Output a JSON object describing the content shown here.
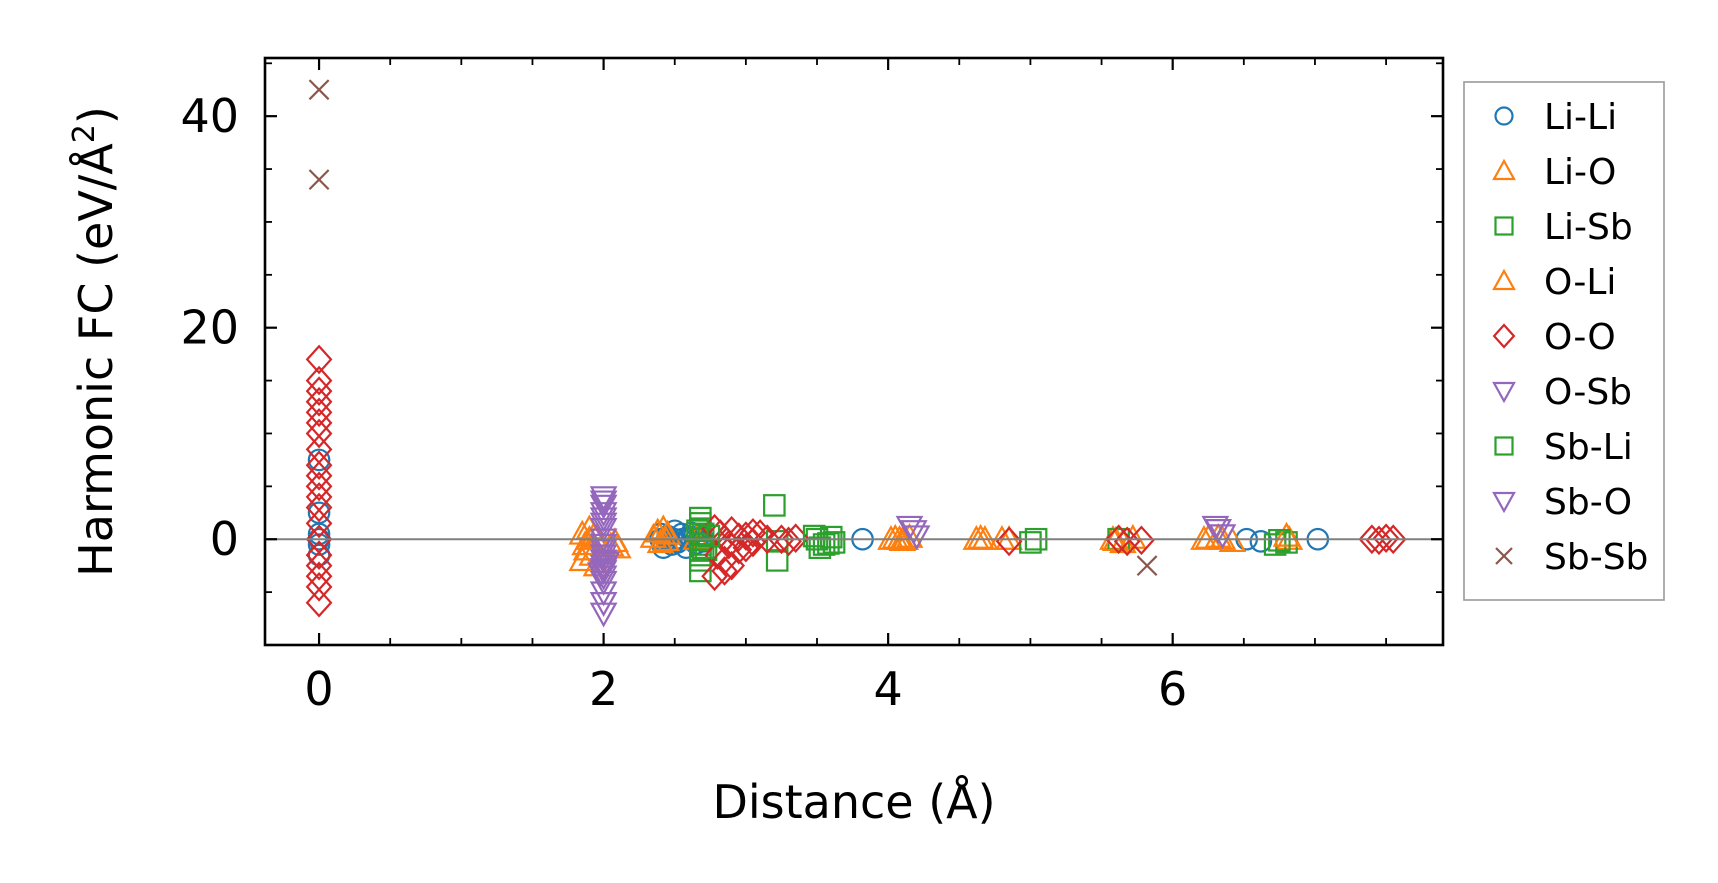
{
  "chart_data": {
    "type": "scatter",
    "xlabel": "Distance (Å)",
    "ylabel_main": "Harmonic FC (eV/Å",
    "ylabel_sup": "2",
    "ylabel_close": ")",
    "xlim": [
      -0.38,
      7.9
    ],
    "ylim": [
      -10,
      45.5
    ],
    "xticks": [
      0,
      2,
      4,
      6
    ],
    "yticks": [
      0,
      20,
      40
    ],
    "xtick_labels": [
      "0",
      "2",
      "4",
      "6"
    ],
    "ytick_labels": [
      "0",
      "20",
      "40"
    ],
    "xminor": [
      0.5,
      1.0,
      1.5,
      2.5,
      3.0,
      3.5,
      4.5,
      5.0,
      5.5,
      6.5,
      7.0,
      7.5
    ],
    "yminor": [
      -5,
      5,
      10,
      15,
      25,
      30,
      35,
      45
    ],
    "hline_y": 0,
    "hline_color": "#808080",
    "grid": false,
    "legend_position": "outside-right",
    "series": [
      {
        "name": "Li-Li",
        "marker": "circle",
        "color": "#1f77b4",
        "x": [
          0,
          0,
          0,
          0,
          0,
          0,
          2.4,
          2.42,
          2.45,
          2.48,
          2.5,
          2.52,
          2.55,
          2.58,
          2.6,
          2.62,
          2.65,
          2.68,
          2.7,
          2.4,
          2.45,
          2.5,
          2.55,
          2.6,
          2.65,
          2.7,
          3.82,
          6.52,
          6.62,
          7.02
        ],
        "y": [
          7.5,
          2.5,
          0.5,
          0,
          -0.5,
          -1.5,
          0.5,
          -0.8,
          0.3,
          -0.5,
          0.8,
          -0.3,
          0.5,
          -0.8,
          0.2,
          0.6,
          -0.4,
          0.4,
          -0.2,
          0,
          0,
          0,
          0,
          0,
          0,
          0,
          0,
          0,
          -0.2,
          0
        ]
      },
      {
        "name": "Li-O",
        "marker": "triangle-up",
        "color": "#ff7f0e",
        "x": [
          1.85,
          1.87,
          1.9,
          1.92,
          1.95,
          1.85,
          1.9,
          1.95,
          2.05,
          2.1,
          2.35,
          2.4,
          2.45,
          2.42,
          2.65,
          2.7,
          4.02,
          4.08,
          4.12,
          4.15,
          4.62,
          4.68,
          4.85,
          5.58,
          5.65,
          5.72,
          6.22,
          6.32,
          6.42,
          6.82
        ],
        "y": [
          0.5,
          -0.5,
          1.0,
          -1.5,
          -2.5,
          -2.0,
          0,
          0.2,
          -0.6,
          -0.8,
          0.2,
          -0.3,
          0.5,
          1.0,
          0,
          0.2,
          0,
          0,
          0,
          0.2,
          0,
          0,
          0,
          0,
          -0.3,
          0.1,
          0,
          0.2,
          -0.2,
          0
        ]
      },
      {
        "name": "Li-Sb",
        "marker": "square",
        "color": "#2ca02c",
        "x": [
          2.68,
          2.68,
          2.68,
          2.68,
          2.68,
          2.68,
          2.68,
          2.68,
          2.68,
          2.68,
          2.7,
          2.72,
          3.2,
          3.22,
          3.22,
          3.5,
          3.55,
          3.6,
          3.62,
          3.52,
          5.0,
          5.62,
          6.72,
          6.8
        ],
        "y": [
          2.0,
          1.5,
          1.0,
          0.5,
          0,
          -0.5,
          -1.0,
          -1.5,
          -2.0,
          -3.0,
          0.5,
          -1.0,
          3.2,
          -0.2,
          -2.0,
          0,
          -0.5,
          0.2,
          -0.3,
          -0.8,
          -0.3,
          0,
          -0.5,
          -0.3
        ]
      },
      {
        "name": "O-Li",
        "marker": "triangle-up",
        "color": "#ff7f0e",
        "x": [
          1.88,
          1.93,
          2.08,
          2.38,
          2.44,
          4.05,
          4.1,
          4.65,
          4.8,
          5.6,
          6.25,
          6.35,
          6.8
        ],
        "y": [
          -1.0,
          0.3,
          -0.2,
          0.7,
          -0.1,
          0.1,
          -0.1,
          0.1,
          0,
          -0.1,
          0.1,
          0,
          0.3
        ]
      },
      {
        "name": "O-O",
        "marker": "diamond",
        "color": "#d62728",
        "x": [
          0,
          0,
          0,
          0,
          0,
          0,
          0,
          0,
          0,
          0,
          0,
          0,
          0,
          0,
          0,
          0,
          0,
          0,
          0,
          0,
          2.78,
          2.82,
          2.85,
          2.88,
          2.9,
          2.95,
          3.0,
          3.05,
          3.1,
          3.15,
          2.8,
          2.85,
          2.9,
          2.95,
          3.0,
          3.05,
          3.25,
          3.3,
          3.35,
          2.78,
          2.85,
          4.85,
          5.62,
          5.68,
          5.78,
          7.4,
          7.45,
          7.5,
          7.55
        ],
        "y": [
          17,
          15,
          14,
          13,
          12,
          11,
          10,
          8.5,
          7,
          6,
          5,
          4,
          3,
          1.5,
          0,
          -1.5,
          -2.5,
          -3.5,
          -4.5,
          -6,
          1.0,
          0.5,
          0,
          -0.5,
          0.8,
          -1.0,
          0.3,
          -0.3,
          0.5,
          0,
          -1.5,
          -2.0,
          -2.5,
          0.2,
          -0.8,
          0.6,
          0,
          -0.2,
          0.1,
          -3.5,
          -3.0,
          -0.2,
          0,
          -0.2,
          -0.1,
          0,
          -0.1,
          0.1,
          0
        ]
      },
      {
        "name": "O-Sb",
        "marker": "triangle-down",
        "color": "#9467bd",
        "x": [
          2.0,
          2.0,
          2.0,
          2.0,
          2.0,
          2.0,
          2.0,
          2.0,
          2.0,
          2.0,
          2.0,
          2.0,
          2.0,
          2.0,
          2.0,
          2.0,
          2.02,
          1.98,
          4.15,
          4.2,
          6.3,
          6.35
        ],
        "y": [
          4.0,
          3.2,
          2.5,
          2.0,
          1.0,
          0,
          -0.5,
          -1.0,
          -1.5,
          -2.0,
          -2.5,
          -3.0,
          -3.5,
          -4.0,
          -5.0,
          -6.0,
          -2.2,
          -3.2,
          1.2,
          0.3,
          1.2,
          0.4
        ]
      },
      {
        "name": "Sb-Li",
        "marker": "square",
        "color": "#2ca02c",
        "x": [
          2.66,
          2.7,
          2.74,
          3.48,
          3.58,
          5.04,
          6.75
        ],
        "y": [
          0.8,
          -0.8,
          0.3,
          0.3,
          -0.4,
          0,
          -0.1
        ]
      },
      {
        "name": "Sb-O",
        "marker": "triangle-down",
        "color": "#9467bd",
        "x": [
          2.0,
          2.0,
          2.0,
          2.0,
          4.18,
          6.32
        ],
        "y": [
          3.6,
          1.5,
          -2.8,
          -7.0,
          0.8,
          0.9
        ]
      },
      {
        "name": "Sb-Sb",
        "marker": "x",
        "color": "#8c564b",
        "x": [
          0,
          0,
          5.82
        ],
        "y": [
          42.5,
          34.0,
          -2.5
        ]
      }
    ]
  }
}
